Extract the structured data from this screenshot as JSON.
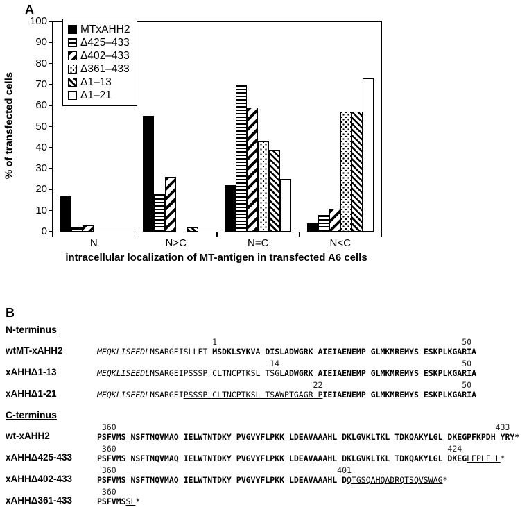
{
  "panel_a": {
    "label": "A"
  },
  "chart_data": {
    "type": "bar",
    "title": "",
    "xlabel": "intracellular localization of MT-antigen in transfected A6 cells",
    "ylabel": "% of transfected cells",
    "categories": [
      "N",
      "N>C",
      "N=C",
      "N<C"
    ],
    "series": [
      {
        "name": "MTxAHH2",
        "pattern": "solid",
        "values": [
          17,
          55,
          22,
          4
        ]
      },
      {
        "name": "Δ425–433",
        "pattern": "hlines",
        "values": [
          2,
          18,
          70,
          8
        ]
      },
      {
        "name": "Δ402–433",
        "pattern": "diag-wide",
        "values": [
          3,
          26,
          59,
          11
        ]
      },
      {
        "name": "Δ361–433",
        "pattern": "dots",
        "values": [
          0,
          0,
          43,
          57
        ]
      },
      {
        "name": "Δ1–13",
        "pattern": "diag-dense",
        "values": [
          0,
          2,
          39,
          57
        ]
      },
      {
        "name": "Δ1–21",
        "pattern": "open",
        "values": [
          0,
          0,
          25,
          73
        ]
      }
    ],
    "ylim": [
      0,
      100
    ],
    "y_ticks": [
      0,
      10,
      20,
      30,
      40,
      50,
      60,
      70,
      80,
      90,
      100
    ],
    "grid": "off",
    "legend_position": "upper-left"
  },
  "panel_b": {
    "label": "B",
    "sections": [
      {
        "heading": "N-terminus",
        "rows": [
          {
            "label": "wtMT-xAHH2",
            "markers": [
              {
                "t": "1",
                "col": 24
              },
              {
                "t": "50",
                "col": 76
              }
            ],
            "segments": [
              {
                "t": "MEQKLISEEDL",
                "s": "italic"
              },
              {
                "t": "NSARGEISLLFT ",
                "s": "plain"
              },
              {
                "t": "MSDKLSYKVA DISLADWGRK AIEIAENEMP GLMKMREMYS ESKPLKGARIA",
                "s": "bold"
              }
            ]
          },
          {
            "label": "xAHHΔ1-13",
            "markers": [
              {
                "t": "14",
                "col": 36
              },
              {
                "t": "50",
                "col": 76
              }
            ],
            "segments": [
              {
                "t": "MEQKLISEEDL",
                "s": "italic"
              },
              {
                "t": "NSARGEI",
                "s": "plain"
              },
              {
                "t": "PSSSP CLTNCPTKSL TSG",
                "s": "underline"
              },
              {
                "t": "LADWGRK AIEIAENEMP GLMKMREMYS ESKPLKGARIA",
                "s": "bold"
              }
            ]
          },
          {
            "label": "xAHHΔ1-21",
            "markers": [
              {
                "t": "22",
                "col": 45
              },
              {
                "t": "50",
                "col": 76
              }
            ],
            "segments": [
              {
                "t": "MEQKLISEEDL",
                "s": "italic"
              },
              {
                "t": "NSARGEI",
                "s": "plain"
              },
              {
                "t": "PSSSP CLTNCPTKSL TSAWPTGAGR P",
                "s": "underline"
              },
              {
                "t": "IEIAENEMP GLMKMREMYS ESKPLKGARIA",
                "s": "bold"
              }
            ]
          }
        ]
      },
      {
        "heading": "C-terminus",
        "rows": [
          {
            "label": "wt-xAHH2",
            "markers": [
              {
                "t": "360",
                "col": 1
              },
              {
                "t": "433",
                "col": 83
              }
            ],
            "segments": [
              {
                "t": "PSFVMS NSFTNQVMAQ IELWTNTDKY PVGVYFLPKK LDEAVAAAHL DKLGVKLTKL TDKQAKYLGL DKEGPFKPDH YRY*",
                "s": "bold"
              }
            ]
          },
          {
            "label": "xAHHΔ425-433",
            "markers": [
              {
                "t": "360",
                "col": 1
              },
              {
                "t": "424",
                "col": 73
              }
            ],
            "segments": [
              {
                "t": "PSFVMS NSFTNQVMAQ IELWTNTDKY PVGVYFLPKK LDEAVAAAHL DKLGVKLTKL TDKQAKYLGL DKEG",
                "s": "bold"
              },
              {
                "t": "LEPLE L",
                "s": "underline"
              },
              {
                "t": "*",
                "s": "plain"
              }
            ]
          },
          {
            "label": "xAHHΔ402-433",
            "markers": [
              {
                "t": "360",
                "col": 1
              },
              {
                "t": "401",
                "col": 50
              }
            ],
            "segments": [
              {
                "t": "PSFVMS NSFTNQVMAQ IELWTNTDKY PVGVYFLPKK LDEAVAAAHL D",
                "s": "bold"
              },
              {
                "t": "QTGSQAHQADRQTSQVSWAG",
                "s": "underline"
              },
              {
                "t": "*",
                "s": "plain"
              }
            ]
          },
          {
            "label": "xAHHΔ361-433",
            "markers": [
              {
                "t": "360",
                "col": 1
              }
            ],
            "segments": [
              {
                "t": "PSFVMS",
                "s": "bold"
              },
              {
                "t": "SL",
                "s": "underline"
              },
              {
                "t": "*",
                "s": "plain"
              }
            ]
          }
        ]
      }
    ]
  }
}
